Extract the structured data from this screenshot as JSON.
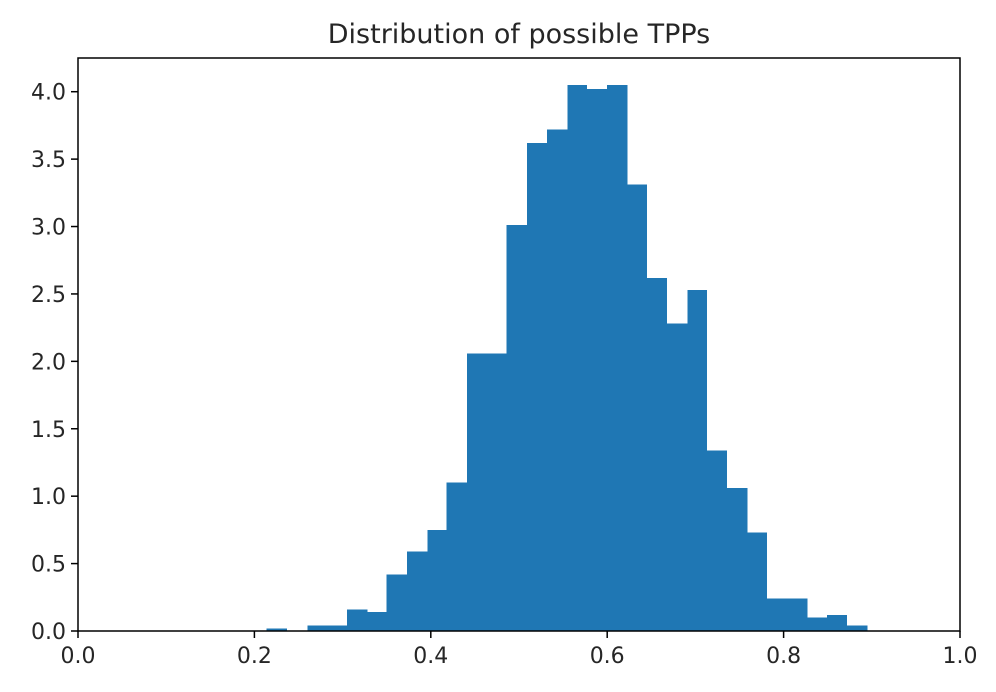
{
  "chart_data": {
    "type": "bar",
    "title": "Distribution of possible TPPs",
    "xlabel": "",
    "ylabel": "",
    "xlim": [
      0.0,
      1.0
    ],
    "ylim": [
      0.0,
      4.25
    ],
    "grid": false,
    "bar_color": "#1f77b4",
    "x_ticks": [
      0.0,
      0.2,
      0.4,
      0.6,
      0.8,
      1.0
    ],
    "x_tick_labels": [
      "0.0",
      "0.2",
      "0.4",
      "0.6",
      "0.8",
      "1.0"
    ],
    "y_ticks": [
      0.0,
      0.5,
      1.0,
      1.5,
      2.0,
      2.5,
      3.0,
      3.5,
      4.0
    ],
    "y_tick_labels": [
      "0.0",
      "0.5",
      "1.0",
      "1.5",
      "2.0",
      "2.5",
      "3.0",
      "3.5",
      "4.0"
    ],
    "bins": [
      {
        "x0": 0.214,
        "x1": 0.237,
        "value": 0.02
      },
      {
        "x0": 0.26,
        "x1": 0.282,
        "value": 0.04
      },
      {
        "x0": 0.282,
        "x1": 0.305,
        "value": 0.04
      },
      {
        "x0": 0.305,
        "x1": 0.328,
        "value": 0.16
      },
      {
        "x0": 0.328,
        "x1": 0.35,
        "value": 0.14
      },
      {
        "x0": 0.35,
        "x1": 0.373,
        "value": 0.42
      },
      {
        "x0": 0.373,
        "x1": 0.396,
        "value": 0.59
      },
      {
        "x0": 0.396,
        "x1": 0.418,
        "value": 0.75
      },
      {
        "x0": 0.418,
        "x1": 0.441,
        "value": 1.1
      },
      {
        "x0": 0.441,
        "x1": 0.464,
        "value": 2.06
      },
      {
        "x0": 0.464,
        "x1": 0.486,
        "value": 2.06
      },
      {
        "x0": 0.486,
        "x1": 0.509,
        "value": 3.01
      },
      {
        "x0": 0.509,
        "x1": 0.532,
        "value": 3.62
      },
      {
        "x0": 0.532,
        "x1": 0.555,
        "value": 3.72
      },
      {
        "x0": 0.555,
        "x1": 0.577,
        "value": 4.05
      },
      {
        "x0": 0.577,
        "x1": 0.6,
        "value": 4.02
      },
      {
        "x0": 0.6,
        "x1": 0.623,
        "value": 4.05
      },
      {
        "x0": 0.623,
        "x1": 0.645,
        "value": 3.31
      },
      {
        "x0": 0.645,
        "x1": 0.668,
        "value": 2.62
      },
      {
        "x0": 0.668,
        "x1": 0.691,
        "value": 2.28
      },
      {
        "x0": 0.691,
        "x1": 0.713,
        "value": 2.53
      },
      {
        "x0": 0.713,
        "x1": 0.736,
        "value": 1.34
      },
      {
        "x0": 0.736,
        "x1": 0.759,
        "value": 1.06
      },
      {
        "x0": 0.759,
        "x1": 0.781,
        "value": 0.73
      },
      {
        "x0": 0.781,
        "x1": 0.804,
        "value": 0.24
      },
      {
        "x0": 0.804,
        "x1": 0.827,
        "value": 0.24
      },
      {
        "x0": 0.827,
        "x1": 0.849,
        "value": 0.1
      },
      {
        "x0": 0.849,
        "x1": 0.872,
        "value": 0.12
      },
      {
        "x0": 0.872,
        "x1": 0.895,
        "value": 0.04
      }
    ]
  }
}
